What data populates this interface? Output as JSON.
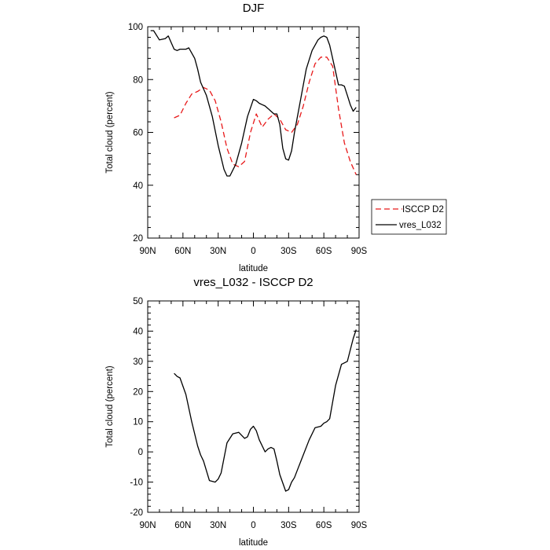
{
  "chart_data": [
    {
      "type": "line",
      "title": "DJF",
      "xlabel": "latitude",
      "ylabel": "Total cloud (percent)",
      "xlim": [
        90,
        -90
      ],
      "ylim": [
        20,
        100
      ],
      "xticks": [
        90,
        60,
        30,
        0,
        -30,
        -60,
        -90
      ],
      "xtick_labels": [
        "90N",
        "60N",
        "30N",
        "0",
        "30S",
        "60S",
        "90S"
      ],
      "yticks": [
        20,
        40,
        60,
        80,
        100
      ],
      "ytick_labels": [
        "20",
        "40",
        "60",
        "80",
        "100"
      ],
      "legend": {
        "position": "right"
      },
      "series": [
        {
          "name": "ISCCP D2",
          "color": "#e8191a",
          "dash": "dashed",
          "x": [
            67.5,
            62.5,
            57.5,
            52.5,
            47.5,
            42.5,
            37.5,
            32.5,
            27.5,
            22.5,
            17.5,
            12.5,
            7.5,
            2.5,
            -2.5,
            -7.5,
            -12.5,
            -17.5,
            -22.5,
            -27.5,
            -32.5,
            -37.5,
            -42.5,
            -47.5,
            -52.5,
            -57.5,
            -62.5,
            -67.5,
            -72.5,
            -77.5,
            -82.5,
            -87.5
          ],
          "y": [
            65.5,
            66.5,
            71,
            74.5,
            75.5,
            77,
            76,
            72,
            64,
            54,
            48,
            47,
            49,
            60,
            67,
            62,
            65,
            67,
            65,
            61,
            60,
            63,
            70,
            79,
            86,
            88.5,
            88.5,
            85,
            69,
            56,
            49,
            44
          ]
        },
        {
          "name": "vres_L032",
          "color": "#000000",
          "dash": "solid",
          "x": [
            87.5,
            85,
            80,
            75,
            72.5,
            70,
            67.5,
            65,
            62.5,
            60,
            57.5,
            55,
            50,
            47.5,
            45,
            40,
            35,
            30,
            25,
            22.5,
            20,
            15,
            10,
            5,
            0,
            -2.5,
            -5,
            -7.5,
            -10,
            -12.5,
            -15,
            -17.5,
            -20,
            -22.5,
            -25,
            -27.5,
            -30,
            -32.5,
            -35,
            -40,
            -45,
            -50,
            -55,
            -57.5,
            -60,
            -62.5,
            -65,
            -70,
            -72.5,
            -75,
            -77.5,
            -80,
            -82.5,
            -85,
            -87.5
          ],
          "y": [
            98.5,
            98.5,
            95,
            95.5,
            96.5,
            94,
            91.5,
            91,
            91.5,
            91.5,
            91.5,
            92,
            88,
            84,
            79,
            74,
            66,
            55,
            46,
            43.5,
            43.5,
            48,
            56,
            66,
            72.5,
            72,
            71,
            70.5,
            70,
            69,
            68,
            67,
            67,
            63,
            54,
            50,
            49.5,
            53,
            60,
            72,
            84,
            91,
            95,
            96,
            96.5,
            96,
            93,
            83,
            78,
            78,
            77.5,
            74,
            70.5,
            68,
            69.5
          ]
        }
      ]
    },
    {
      "type": "line",
      "title": "vres_L032 - ISCCP D2",
      "xlabel": "latitude",
      "ylabel": "Total cloud (percent)",
      "xlim": [
        90,
        -90
      ],
      "ylim": [
        -20,
        50
      ],
      "xticks": [
        90,
        60,
        30,
        0,
        -30,
        -60,
        -90
      ],
      "xtick_labels": [
        "90N",
        "60N",
        "30N",
        "0",
        "30S",
        "60S",
        "90S"
      ],
      "yticks": [
        -20,
        -10,
        0,
        10,
        20,
        30,
        40,
        50
      ],
      "ytick_labels": [
        "-20",
        "-10",
        "0",
        "10",
        "20",
        "30",
        "40",
        "50"
      ],
      "series": [
        {
          "color": "#000000",
          "dash": "solid",
          "x": [
            67.5,
            65,
            62.5,
            57.5,
            52.5,
            47.5,
            45,
            42.5,
            37.5,
            32.5,
            30,
            27.5,
            22.5,
            17.5,
            12.5,
            7.5,
            5,
            2.5,
            0,
            -2.5,
            -5,
            -10,
            -12.5,
            -15,
            -17.5,
            -20,
            -22.5,
            -27.5,
            -30,
            -32.5,
            -35,
            -37.5,
            -42.5,
            -47.5,
            -52.5,
            -57.5,
            -60,
            -62.5,
            -65,
            -70,
            -75,
            -80,
            -85,
            -87.5
          ],
          "y": [
            26,
            25,
            24.5,
            19,
            10,
            2,
            -1,
            -3,
            -9.5,
            -10,
            -9,
            -7,
            3,
            6,
            6.5,
            4.5,
            5,
            7.5,
            8.5,
            7,
            4,
            0,
            1,
            1.5,
            1,
            -3,
            -7.5,
            -13,
            -12.5,
            -10,
            -8.5,
            -6,
            -1,
            4,
            8,
            8.5,
            9.5,
            10,
            11,
            22,
            29,
            30,
            37.5,
            40.5
          ]
        }
      ]
    }
  ]
}
